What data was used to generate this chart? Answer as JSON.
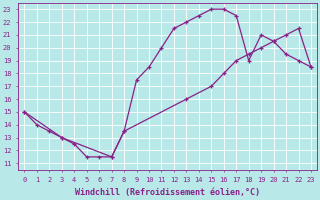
{
  "xlabel": "Windchill (Refroidissement éolien,°C)",
  "line1_x": [
    0,
    1,
    2,
    3,
    4,
    5,
    6,
    7,
    8,
    9,
    10,
    11,
    12,
    13,
    14,
    15,
    16,
    17,
    18,
    19,
    20,
    21,
    22,
    23
  ],
  "line1_y": [
    15,
    14,
    13.5,
    13,
    12.5,
    11.5,
    11.5,
    11.5,
    13.5,
    17.5,
    18.5,
    20,
    21.5,
    22,
    22.5,
    23,
    23,
    22.5,
    19,
    21,
    20.5,
    19.5,
    19,
    18.5
  ],
  "line2_x": [
    0,
    3,
    7,
    8,
    13,
    15,
    16,
    17,
    18,
    19,
    20,
    21,
    22,
    23
  ],
  "line2_y": [
    15,
    13,
    11.5,
    13.5,
    16,
    17,
    18,
    19,
    19.5,
    20,
    20.5,
    21,
    21.5,
    18.5
  ],
  "line_color": "#882288",
  "bg_color": "#b8e8e8",
  "grid_color": "#ffffff",
  "axis_color": "#882288",
  "xlim": [
    0,
    23
  ],
  "ylim": [
    11,
    23
  ],
  "xticks": [
    0,
    1,
    2,
    3,
    4,
    5,
    6,
    7,
    8,
    9,
    10,
    11,
    12,
    13,
    14,
    15,
    16,
    17,
    18,
    19,
    20,
    21,
    22,
    23
  ],
  "yticks": [
    11,
    12,
    13,
    14,
    15,
    16,
    17,
    18,
    19,
    20,
    21,
    22,
    23
  ],
  "tick_fontsize": 5,
  "xlabel_fontsize": 6,
  "marker_size": 3.5,
  "line_width": 0.9
}
